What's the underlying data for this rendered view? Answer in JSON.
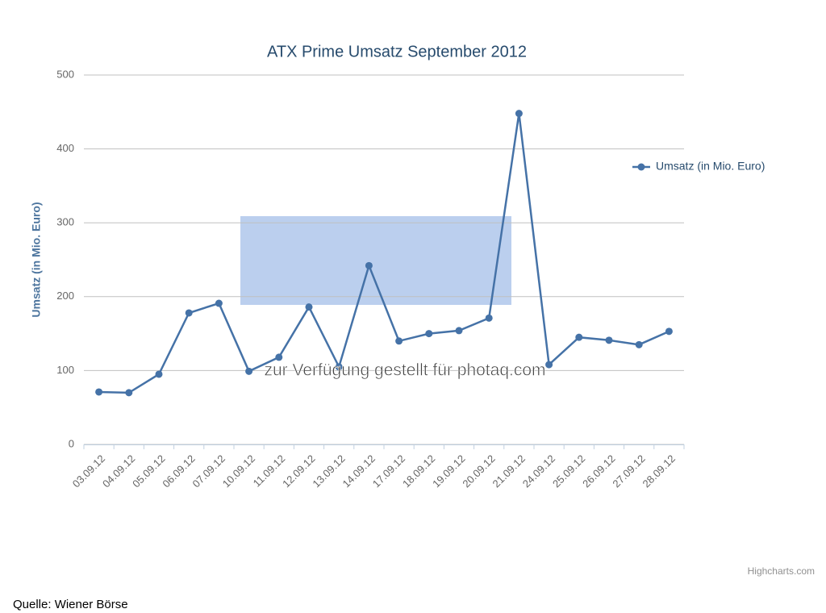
{
  "chart_data": {
    "type": "line",
    "title": "ATX Prime Umsatz September 2012",
    "y_label": "Umsatz (in Mio. Euro)",
    "categories": [
      "03.09.12",
      "04.09.12",
      "05.09.12",
      "06.09.12",
      "07.09.12",
      "10.09.12",
      "11.09.12",
      "12.09.12",
      "13.09.12",
      "14.09.12",
      "17.09.12",
      "18.09.12",
      "19.09.12",
      "20.09.12",
      "21.09.12",
      "24.09.12",
      "25.09.12",
      "26.09.12",
      "27.09.12",
      "28.09.12"
    ],
    "series": [
      {
        "name": "Umsatz (in Mio. Euro)",
        "color": "#4572a7",
        "values": [
          71,
          70,
          95,
          178,
          191,
          99,
          118,
          186,
          105,
          242,
          140,
          150,
          154,
          171,
          448,
          108,
          145,
          141,
          135,
          153
        ]
      }
    ],
    "ylim": [
      0,
      500
    ],
    "yticks": [
      0,
      100,
      200,
      300,
      400,
      500
    ],
    "grid": true,
    "legend": "right",
    "credits": "Highcharts.com",
    "source": "Quelle: Wiener Börse",
    "watermark": "zur Verfügung gestellt für photaq.com"
  }
}
